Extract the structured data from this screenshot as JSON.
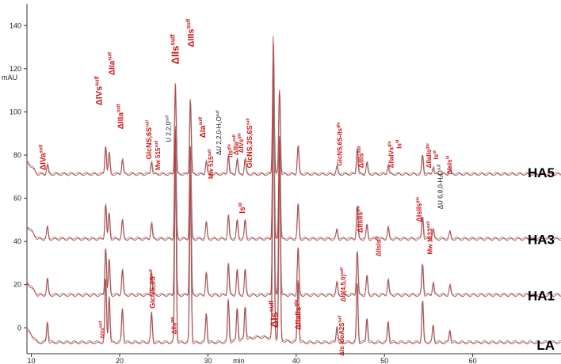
{
  "chart_data": {
    "type": "line",
    "title": "",
    "xlabel": "min",
    "ylabel": "mAU",
    "xlim": [
      9.5,
      70
    ],
    "ylim": [
      -12,
      150
    ],
    "x_ticks": [
      10,
      20,
      30,
      40,
      50,
      60
    ],
    "y_ticks": [
      0,
      20,
      40,
      60,
      80,
      100,
      120,
      140
    ],
    "grid": false,
    "legend": "none",
    "colors": {
      "trace_red": "#c03a3a",
      "trace_gray": "#8a8a8a",
      "annotation": "#d11414",
      "label_black": "#111111"
    },
    "series": [
      {
        "name": "HA5",
        "baseline": 71,
        "label_y": 72
      },
      {
        "name": "HA3",
        "baseline": 41,
        "label_y": 41
      },
      {
        "name": "HA1",
        "baseline": 15,
        "label_y": 15
      },
      {
        "name": "LA",
        "baseline": -7,
        "label_y": -8
      }
    ],
    "peaks": [
      {
        "x": 11.8,
        "h": 10
      },
      {
        "x": 18.4,
        "h": 30
      },
      {
        "x": 18.8,
        "h": 22
      },
      {
        "x": 20.3,
        "h": 16
      },
      {
        "x": 23.6,
        "h": 14
      },
      {
        "x": 26.3,
        "h": 95
      },
      {
        "x": 28.0,
        "h": 80
      },
      {
        "x": 29.8,
        "h": 14
      },
      {
        "x": 32.3,
        "h": 20
      },
      {
        "x": 33.3,
        "h": 16
      },
      {
        "x": 34.2,
        "h": 16
      },
      {
        "x": 37.4,
        "h": 140
      },
      {
        "x": 38.1,
        "h": 90
      },
      {
        "x": 40.2,
        "h": 30
      },
      {
        "x": 44.6,
        "h": 8
      },
      {
        "x": 46.9,
        "h": 28
      },
      {
        "x": 48.0,
        "h": 12
      },
      {
        "x": 50.4,
        "h": 10
      },
      {
        "x": 54.3,
        "h": 20
      },
      {
        "x": 55.5,
        "h": 8
      },
      {
        "x": 57.4,
        "h": 6
      }
    ],
    "annotations": [
      {
        "main": "ΔIVa",
        "sup": "sulf",
        "x": 11.6,
        "y": 73,
        "size": 10,
        "color": "red"
      },
      {
        "main": "ΔIVs",
        "sup": "sulf",
        "x": 18.0,
        "y": 103,
        "size": 11,
        "color": "red"
      },
      {
        "main": "ΔIIa",
        "sup": "sulf",
        "x": 19.4,
        "y": 117,
        "size": 10,
        "color": "red"
      },
      {
        "main": "ΔIIIa",
        "sup": "sulf",
        "x": 20.4,
        "y": 92,
        "size": 10,
        "color": "red"
      },
      {
        "main": "GlcNS,6S",
        "sup": "sulf",
        "x": 23.6,
        "y": 78,
        "size": 9,
        "color": "red"
      },
      {
        "main": "Mw 515",
        "sup": "sulf",
        "x": 24.6,
        "y": 73,
        "size": 8,
        "color": "red"
      },
      {
        "main": "U 2,2,0",
        "sup": "sulf",
        "x": 25.8,
        "y": 86,
        "size": 8,
        "color": "black"
      },
      {
        "main": "ΔIIs",
        "sup": "sulf",
        "x": 26.7,
        "y": 122,
        "size": 13,
        "color": "red"
      },
      {
        "main": "ΔIIIs",
        "sup": "sulf",
        "x": 28.4,
        "y": 130,
        "size": 11,
        "color": "red"
      },
      {
        "main": "Mw 515",
        "sup": "sulf",
        "x": 30.6,
        "y": 69,
        "size": 8,
        "color": "red"
      },
      {
        "main": "ΔIa",
        "sup": "sulf",
        "x": 29.7,
        "y": 88,
        "size": 10,
        "color": "red"
      },
      {
        "main": "ΔU 2,2,0-H₂O",
        "sup": "sulf",
        "x": 31.5,
        "y": 80,
        "size": 8,
        "color": "black"
      },
      {
        "main": "IIs",
        "sup": "glu",
        "x": 32.8,
        "y": 79,
        "size": 8,
        "color": "red"
      },
      {
        "main": "ΔIIIa",
        "sup": "sulf",
        "x": 33.4,
        "y": 80,
        "size": 8,
        "color": "red"
      },
      {
        "main": "ΔIVs",
        "sup": "glu",
        "x": 34.0,
        "y": 81,
        "size": 8,
        "color": "red"
      },
      {
        "main": "GlcNS,3S,6S",
        "sup": "sulf",
        "x": 35.0,
        "y": 74,
        "size": 9,
        "color": "red"
      },
      {
        "main": "Is",
        "sup": "id",
        "x": 34.2,
        "y": 53,
        "size": 10,
        "color": "red"
      },
      {
        "main": "GlcNS,3S",
        "sup": "sulf",
        "x": 24.0,
        "y": 9,
        "size": 9,
        "color": "red"
      },
      {
        "main": "ΔIIs",
        "sup": "gal",
        "x": 26.4,
        "y": -3,
        "size": 8,
        "color": "red"
      },
      {
        "main": "ΔIVs",
        "sup": "sulf",
        "x": 18.2,
        "y": -5,
        "size": 6,
        "color": "red"
      },
      {
        "main": "ΔIs",
        "sup": "sulf",
        "x": 37.9,
        "y": 0,
        "size": 13,
        "color": "red"
      },
      {
        "main": "ΔIIaIIs",
        "sup": "glu",
        "x": 40.5,
        "y": -1,
        "size": 10,
        "color": "red"
      },
      {
        "main": "ΔIs IdoA2S",
        "sup": "sulf",
        "x": 45.4,
        "y": -13,
        "size": 8,
        "color": "red"
      },
      {
        "main": "ΔU(4,5,0)",
        "sup": "sulf",
        "x": 45.6,
        "y": 12,
        "size": 8,
        "color": "red"
      },
      {
        "main": "GlcNS,6S-IIs",
        "sup": "glu",
        "x": 45.2,
        "y": 75,
        "size": 8,
        "color": "red"
      },
      {
        "main": "ΔIIsIIs",
        "sup": "glu",
        "x": 47.5,
        "y": 44,
        "size": 9,
        "color": "red"
      },
      {
        "main": "ΔIIIs",
        "sup": "sulf",
        "x": 47.6,
        "y": 74,
        "size": 9,
        "color": "red"
      },
      {
        "main": "ΔIIsIs",
        "sup": "id",
        "x": 49.6,
        "y": 33,
        "size": 8,
        "color": "red"
      },
      {
        "main": "ΔIIaIVs",
        "sup": "glu",
        "x": 51.0,
        "y": 74,
        "size": 8,
        "color": "red"
      },
      {
        "main": "Is",
        "sup": "id",
        "x": 51.9,
        "y": 83,
        "size": 8,
        "color": "red"
      },
      {
        "main": "ΔIsIIs",
        "sup": "glu",
        "x": 54.2,
        "y": 49,
        "size": 9,
        "color": "red"
      },
      {
        "main": "Mw 1633",
        "sup": "sulf",
        "x": 55.4,
        "y": 34,
        "size": 8,
        "color": "red"
      },
      {
        "main": "ΔIIaIIs",
        "sup": "glu",
        "x": 55.3,
        "y": 74,
        "size": 8,
        "color": "red"
      },
      {
        "main": "Is",
        "sup": "id",
        "x": 56.1,
        "y": 78,
        "size": 8,
        "color": "red"
      },
      {
        "main": "ΔU 6,8,0-H₂O",
        "sup": "sulf",
        "x": 56.6,
        "y": 55,
        "size": 8,
        "color": "black"
      },
      {
        "main": "ΔIsIs",
        "sup": "id",
        "x": 57.6,
        "y": 71,
        "size": 8,
        "color": "red"
      }
    ]
  }
}
